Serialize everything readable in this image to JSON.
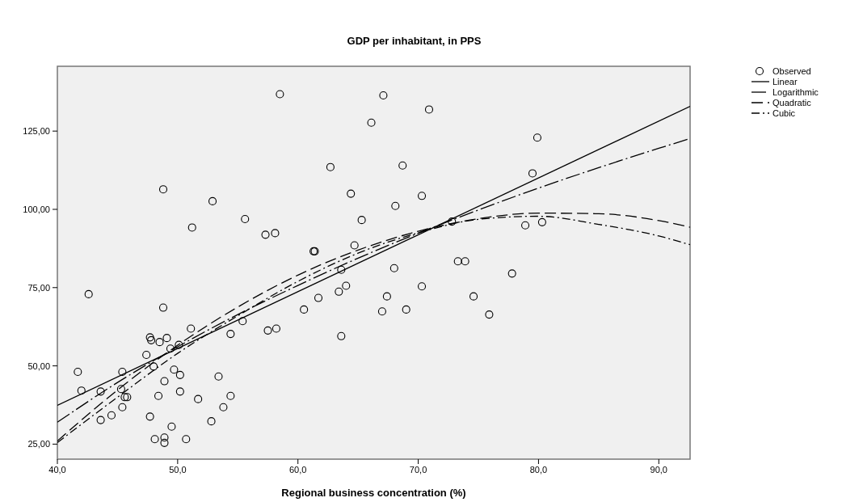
{
  "chart_data": {
    "type": "scatter",
    "title": "GDP per inhabitant, in PPS",
    "xlabel": "Regional business concentration (%)",
    "xlim": [
      40,
      92.6
    ],
    "ylim": [
      20.2,
      145.7
    ],
    "xticks": [
      {
        "value": 40,
        "label": "40,0"
      },
      {
        "value": 50,
        "label": "50,0"
      },
      {
        "value": 60,
        "label": "60,0"
      },
      {
        "value": 70,
        "label": "70,0"
      },
      {
        "value": 80,
        "label": "80,0"
      },
      {
        "value": 90,
        "label": "90,0"
      }
    ],
    "yticks": [
      {
        "value": 25,
        "label": "25,00"
      },
      {
        "value": 50,
        "label": "50,00"
      },
      {
        "value": 75,
        "label": "75,00"
      },
      {
        "value": 100,
        "label": "100,00"
      },
      {
        "value": 125,
        "label": "125,00"
      }
    ],
    "grid": false,
    "legend": "right",
    "series": [
      {
        "name": "Observed",
        "marker": "circle",
        "color": "#000000",
        "x": [
          41.7,
          42.0,
          42.6,
          43.6,
          43.6,
          44.5,
          45.4,
          45.3,
          45.4,
          45.6,
          45.8,
          47.4,
          47.7,
          47.8,
          48.0,
          47.7,
          48.1,
          48.4,
          48.5,
          48.8,
          48.8,
          48.9,
          48.9,
          48.9,
          49.1,
          49.4,
          49.5,
          49.7,
          50.1,
          50.2,
          50.2,
          50.7,
          51.1,
          51.2,
          51.7,
          52.8,
          52.9,
          53.4,
          53.8,
          54.4,
          54.4,
          55.4,
          55.6,
          57.3,
          57.5,
          58.1,
          58.2,
          58.5,
          60.5,
          61.3,
          61.4,
          61.7,
          62.7,
          63.4,
          63.6,
          63.6,
          64.0,
          64.4,
          64.7,
          65.3,
          66.1,
          67.0,
          67.1,
          67.4,
          68.0,
          68.1,
          68.7,
          69.0,
          70.3,
          70.3,
          70.9,
          72.8,
          73.3,
          73.9,
          74.6,
          75.9,
          77.8,
          78.9,
          79.5,
          79.9,
          80.3
        ],
        "values": [
          48.1,
          42.1,
          72.9,
          41.8,
          32.7,
          34.2,
          48.1,
          42.6,
          36.8,
          40.0,
          40.0,
          53.5,
          59.1,
          58.2,
          49.8,
          33.8,
          26.6,
          40.4,
          57.6,
          68.6,
          106.4,
          27.1,
          25.4,
          45.1,
          58.9,
          55.5,
          30.6,
          48.8,
          56.7,
          47.1,
          41.8,
          26.6,
          61.9,
          94.2,
          39.4,
          32.3,
          102.6,
          46.6,
          36.8,
          40.4,
          60.2,
          64.3,
          96.9,
          91.9,
          61.3,
          92.4,
          61.9,
          136.8,
          68.0,
          86.6,
          86.6,
          71.7,
          113.5,
          73.7,
          80.7,
          59.5,
          75.6,
          105.0,
          88.5,
          96.6,
          127.7,
          67.4,
          136.4,
          72.2,
          81.2,
          101.1,
          114.0,
          68.0,
          104.3,
          75.4,
          131.9,
          96.1,
          83.4,
          83.4,
          72.2,
          66.4,
          79.5,
          94.9,
          111.5,
          122.9,
          95.9
        ]
      },
      {
        "name": "Linear",
        "type": "line",
        "marker": "none",
        "line_style": "solid",
        "color": "#000000",
        "x": [
          40,
          92.6
        ],
        "values": [
          37.4,
          132.9
        ]
      },
      {
        "name": "Logarithmic",
        "type": "line",
        "marker": "none",
        "line_style": "longdashdot",
        "color": "#000000",
        "x": [
          40,
          45,
          50,
          55,
          60,
          65,
          70,
          75,
          80,
          85,
          90,
          92.6
        ],
        "values": [
          32,
          44.7,
          56.1,
          66.4,
          75.7,
          84.4,
          92.4,
          99.8,
          106.8,
          113.3,
          119.5,
          122.6
        ]
      },
      {
        "name": "Quadratic",
        "type": "line",
        "marker": "none",
        "line_style": "dashed",
        "color": "#000000",
        "x": [
          40,
          45,
          50,
          55,
          60,
          65,
          70,
          75,
          80,
          85,
          90,
          92.6
        ],
        "values": [
          26.0,
          42.3,
          56.6,
          68.8,
          79.0,
          87.0,
          93.0,
          97.0,
          98.8,
          98.6,
          96.4,
          94.3
        ]
      },
      {
        "name": "Cubic",
        "type": "line",
        "marker": "none",
        "line_style": "dashdot",
        "color": "#000000",
        "x": [
          40,
          45,
          50,
          55,
          60,
          65,
          70,
          75,
          80,
          85,
          90,
          92.6
        ],
        "values": [
          25.5,
          40,
          54,
          66,
          77,
          86,
          92.5,
          96.8,
          97.8,
          95.2,
          91.5,
          88.7
        ]
      }
    ]
  }
}
